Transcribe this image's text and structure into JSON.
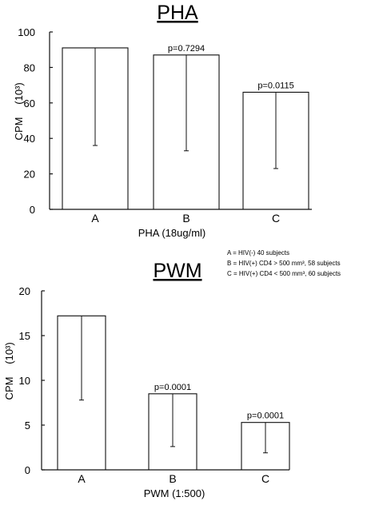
{
  "chart_data": [
    {
      "type": "bar",
      "title": "PHA",
      "xlabel": "PHA (18ug/ml)",
      "ylabel": "CPM",
      "ylabel_unit": "(10³)",
      "categories": [
        "A",
        "B",
        "C"
      ],
      "values": [
        91,
        87,
        66
      ],
      "error_low": [
        36,
        33,
        23
      ],
      "ylim": [
        0,
        100
      ],
      "yticks": [
        "0",
        "20",
        "40",
        "60",
        "80",
        "100"
      ],
      "pvalues": [
        "",
        "p=0.7294",
        "p=0.0115"
      ],
      "grid": false
    },
    {
      "type": "bar",
      "title": "PWM",
      "xlabel": "PWM (1:500)",
      "ylabel": "CPM",
      "ylabel_unit": "(10³)",
      "categories": [
        "A",
        "B",
        "C"
      ],
      "values": [
        17.2,
        8.5,
        5.3
      ],
      "error_low": [
        7.8,
        2.6,
        1.9
      ],
      "ylim": [
        0,
        20
      ],
      "yticks": [
        "0",
        "5",
        "10",
        "15",
        "20"
      ],
      "pvalues": [
        "",
        "p=0.0001",
        "p=0.0001"
      ],
      "grid": false
    }
  ],
  "legend": [
    "A = HIV(-) 40 subjects",
    "B = HIV(+) CD4 > 500 mm³, 58 subjects",
    "C = HIV(+) CD4 < 500 mm³, 60 subjects"
  ]
}
